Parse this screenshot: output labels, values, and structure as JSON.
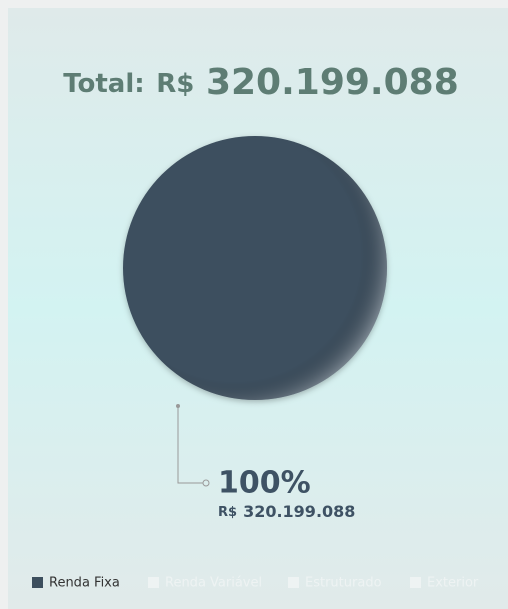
{
  "chart_data": {
    "type": "pie",
    "title": "Total:",
    "currency": "R$",
    "total": {
      "value": 320199088,
      "label": "320.199.088"
    },
    "categories": [
      "Renda Fixa",
      "Renda Variável",
      "Estruturado",
      "Exterior"
    ],
    "values": [
      100,
      null,
      null,
      null
    ],
    "value_labels": [
      "100%",
      null,
      null,
      null
    ],
    "amounts": [
      {
        "value": 320199088,
        "label": "320.199.088"
      },
      null,
      null,
      null
    ],
    "colors": [
      "#3d4f5e",
      "#eef3f3",
      "#eef3f3",
      "#eef3f3"
    ],
    "visible": [
      true,
      false,
      false,
      false
    ],
    "legend": "bottom"
  }
}
